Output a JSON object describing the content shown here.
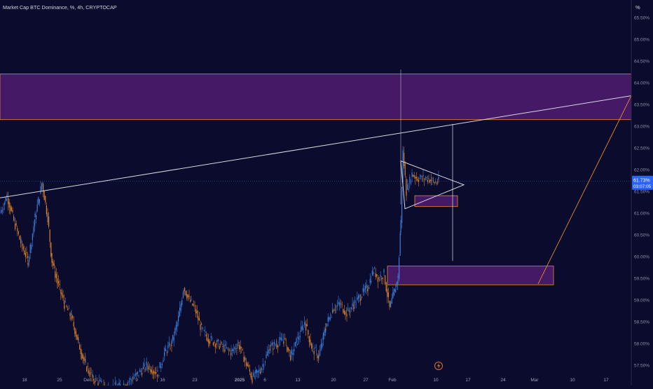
{
  "header": {
    "title": "Market Cap BTC Dominance, %, 4h, CRYPTOCAP",
    "unit_label": "%"
  },
  "price_badge": {
    "value": "61.73%",
    "countdown": "03:07:05",
    "color": "#2962ff"
  },
  "colors": {
    "background": "#0b0b2e",
    "zone_fill": "#4a1a6a",
    "zone_border": "#e08a2a",
    "candle_blue": "#3d7fd9",
    "candle_orange": "#d9822b",
    "trendline": "#d8d8e0"
  },
  "icons": {
    "time_marker": "lightning-icon"
  },
  "chart_data": {
    "type": "candlestick",
    "title": "Market Cap BTC Dominance, %, 4h, CRYPTOCAP",
    "y_unit": "%",
    "ylim": [
      57.3,
      65.8
    ],
    "y_ticks": [
      "57.50%",
      "58.00%",
      "58.50%",
      "59.00%",
      "59.50%",
      "60.00%",
      "60.50%",
      "61.00%",
      "61.50%",
      "62.00%",
      "62.50%",
      "63.00%",
      "63.50%",
      "64.00%",
      "64.50%",
      "65.00%",
      "65.50%"
    ],
    "x_ticks": [
      "18",
      "25",
      "Dec",
      "9",
      "16",
      "23",
      "2025",
      "6",
      "13",
      "20",
      "27",
      "Feb",
      "10",
      "17",
      "24",
      "Mar",
      "10",
      "17"
    ],
    "x_tick_bold": [
      "2025"
    ],
    "current_value": 61.73,
    "price_path": [
      [
        0,
        61.0
      ],
      [
        10,
        61.4
      ],
      [
        20,
        60.8
      ],
      [
        30,
        60.3
      ],
      [
        40,
        59.9
      ],
      [
        50,
        60.9
      ],
      [
        60,
        61.7
      ],
      [
        68,
        60.9
      ],
      [
        74,
        59.9
      ],
      [
        82,
        59.4
      ],
      [
        92,
        58.9
      ],
      [
        102,
        58.6
      ],
      [
        112,
        58.0
      ],
      [
        122,
        57.5
      ],
      [
        132,
        57.2
      ],
      [
        150,
        57.0
      ],
      [
        170,
        57.0
      ],
      [
        190,
        57.2
      ],
      [
        210,
        57.5
      ],
      [
        225,
        57.3
      ],
      [
        235,
        57.8
      ],
      [
        245,
        58.0
      ],
      [
        255,
        58.6
      ],
      [
        262,
        59.3
      ],
      [
        270,
        59.0
      ],
      [
        278,
        58.8
      ],
      [
        288,
        58.3
      ],
      [
        298,
        58.1
      ],
      [
        310,
        58.0
      ],
      [
        320,
        57.9
      ],
      [
        330,
        57.8
      ],
      [
        340,
        58.0
      ],
      [
        350,
        57.6
      ],
      [
        360,
        57.2
      ],
      [
        372,
        57.4
      ],
      [
        385,
        57.9
      ],
      [
        395,
        58.0
      ],
      [
        405,
        58.1
      ],
      [
        415,
        57.7
      ],
      [
        425,
        58.1
      ],
      [
        435,
        58.5
      ],
      [
        445,
        57.9
      ],
      [
        455,
        57.7
      ],
      [
        465,
        58.4
      ],
      [
        475,
        58.8
      ],
      [
        485,
        58.9
      ],
      [
        495,
        58.7
      ],
      [
        505,
        58.9
      ],
      [
        515,
        59.1
      ],
      [
        525,
        59.3
      ],
      [
        533,
        59.7
      ],
      [
        540,
        59.5
      ],
      [
        548,
        59.6
      ],
      [
        556,
        58.8
      ],
      [
        563,
        59.2
      ],
      [
        568,
        59.5
      ],
      [
        572,
        60.8
      ],
      [
        575,
        62.4
      ],
      [
        580,
        61.5
      ],
      [
        588,
        61.9
      ],
      [
        596,
        61.8
      ],
      [
        604,
        61.8
      ],
      [
        612,
        61.8
      ],
      [
        620,
        61.7
      ],
      [
        626,
        61.73
      ]
    ],
    "zones": [
      {
        "name": "upper-zone",
        "y_range": [
          63.15,
          64.2
        ]
      },
      {
        "name": "mid-zone",
        "y_range": [
          61.15,
          61.4
        ]
      },
      {
        "name": "lower-zone",
        "y_range": [
          59.35,
          59.78
        ]
      }
    ],
    "trendline": {
      "from": [
        0,
        61.35
      ],
      "to": [
        901,
        63.7
      ]
    },
    "triangle": [
      [
        572,
        62.2
      ],
      [
        662,
        61.65
      ],
      [
        578,
        61.1
      ]
    ],
    "vertical_lines": [
      {
        "x": 572,
        "y_range": [
          61.2,
          64.3
        ]
      },
      {
        "x": 646,
        "y_range": [
          59.9,
          63.05
        ]
      }
    ],
    "projection_line": {
      "from": [
        768,
        59.37
      ],
      "to": [
        901,
        63.7
      ]
    }
  }
}
